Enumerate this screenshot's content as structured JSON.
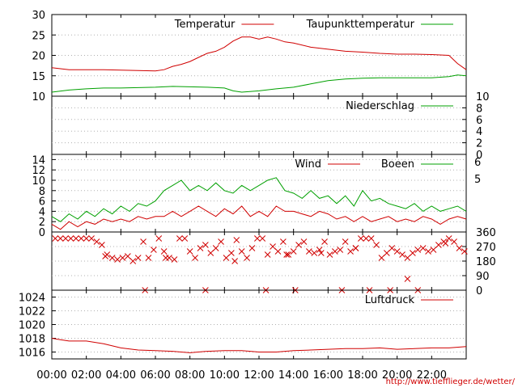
{
  "time_ticks": [
    "00:00",
    "02:00",
    "04:00",
    "06:00",
    "08:00",
    "10:00",
    "12:00",
    "14:00",
    "16:00",
    "18:00",
    "20:00",
    "22:00"
  ],
  "credit": "http://www.tiefflieger.de/wetter/",
  "colors": {
    "series_a": "#d00000",
    "series_b": "#00a000",
    "grid": "#b0b0b0",
    "axis": "#000000"
  },
  "chart_data": [
    {
      "type": "line",
      "ylim": [
        10,
        30
      ],
      "yticks": [
        "10",
        "15",
        "20",
        "25",
        "30"
      ],
      "legend_placement": "top-right",
      "series": [
        {
          "name": "Temperatur",
          "color": "#d00000",
          "x": [
            0,
            1,
            2,
            3,
            4,
            5,
            6,
            6.5,
            7,
            7.5,
            8,
            8.5,
            9,
            9.5,
            10,
            10.5,
            11,
            11.5,
            12,
            12.5,
            13,
            13.5,
            14,
            15,
            16,
            17,
            18,
            19,
            20,
            21,
            22,
            23,
            23.5,
            24
          ],
          "values": [
            17.0,
            16.5,
            16.5,
            16.5,
            16.4,
            16.3,
            16.2,
            16.5,
            17.3,
            17.8,
            18.5,
            19.5,
            20.5,
            21.0,
            22.0,
            23.5,
            24.5,
            24.5,
            24.0,
            24.5,
            24.0,
            23.3,
            23.0,
            22.0,
            21.5,
            21.0,
            20.8,
            20.5,
            20.3,
            20.3,
            20.2,
            20.0,
            18.0,
            16.5
          ]
        },
        {
          "name": "Taupunkttemperatur",
          "color": "#00a000",
          "x": [
            0,
            1,
            2,
            3,
            4,
            5,
            6,
            7,
            8,
            9,
            10,
            10.5,
            11,
            12,
            13,
            14,
            15,
            16,
            17,
            18,
            19,
            20,
            21,
            22,
            23,
            23.5,
            24
          ],
          "values": [
            11.0,
            11.5,
            11.8,
            12.0,
            12.0,
            12.1,
            12.2,
            12.4,
            12.3,
            12.2,
            12.0,
            11.3,
            11.0,
            11.3,
            11.8,
            12.2,
            13.0,
            13.8,
            14.2,
            14.4,
            14.5,
            14.5,
            14.5,
            14.5,
            14.8,
            15.2,
            15.0
          ]
        }
      ]
    },
    {
      "type": "line",
      "ylim": [
        0,
        10
      ],
      "yticks": [
        "0",
        "2",
        "4",
        "6",
        "8",
        "10"
      ],
      "legend_placement": "top-right",
      "series": [
        {
          "name": "Niederschlag",
          "color": "#00a000",
          "x": [
            0,
            24
          ],
          "values": [
            0,
            0
          ]
        }
      ]
    },
    {
      "type": "line",
      "ylim": [
        0,
        15
      ],
      "yticks": [
        "0",
        "2",
        "4",
        "6",
        "8",
        "10",
        "12",
        "14"
      ],
      "right_labels": [
        {
          "label": "6",
          "value": 13.6
        },
        {
          "label": "5",
          "value": 10.3
        }
      ],
      "legend_placement": "top-right",
      "series": [
        {
          "name": "Wind",
          "color": "#d00000",
          "x": [
            0,
            0.5,
            1,
            1.5,
            2,
            2.5,
            3,
            3.5,
            4,
            4.5,
            5,
            5.5,
            6,
            6.5,
            7,
            7.5,
            8,
            8.5,
            9,
            9.5,
            10,
            10.5,
            11,
            11.5,
            12,
            12.5,
            13,
            13.5,
            14,
            14.5,
            15,
            15.5,
            16,
            16.5,
            17,
            17.5,
            18,
            18.5,
            19,
            19.5,
            20,
            20.5,
            21,
            21.5,
            22,
            22.5,
            23,
            23.5,
            24
          ],
          "values": [
            1.5,
            0.5,
            2,
            1,
            2,
            1.5,
            2.5,
            2,
            2.5,
            2,
            3,
            2.5,
            3,
            3,
            4,
            3,
            4,
            5,
            4,
            3,
            4.5,
            3.5,
            5,
            3,
            4,
            3,
            5,
            4,
            4,
            3.5,
            3,
            4,
            3.5,
            2.5,
            3,
            2,
            3,
            2,
            2.5,
            3,
            2,
            2.5,
            2,
            3,
            2.5,
            1.5,
            2.5,
            3,
            2.5
          ]
        },
        {
          "name": "Boeen",
          "color": "#00a000",
          "x": [
            0,
            0.5,
            1,
            1.5,
            2,
            2.5,
            3,
            3.5,
            4,
            4.5,
            5,
            5.5,
            6,
            6.5,
            7,
            7.5,
            8,
            8.5,
            9,
            9.5,
            10,
            10.5,
            11,
            11.5,
            12,
            12.5,
            13,
            13.5,
            14,
            14.5,
            15,
            15.5,
            16,
            16.5,
            17,
            17.5,
            18,
            18.5,
            19,
            19.5,
            20,
            20.5,
            21,
            21.5,
            22,
            22.5,
            23,
            23.5,
            24
          ],
          "values": [
            3,
            2,
            3.5,
            2.5,
            4,
            3,
            4.5,
            3.5,
            5,
            4,
            5.5,
            5,
            6,
            8,
            9,
            10,
            8,
            9,
            8,
            9.5,
            8,
            7.5,
            9,
            8,
            9,
            10,
            10.5,
            8,
            7.5,
            6.5,
            8,
            6.5,
            7,
            5.5,
            7,
            5,
            8,
            6,
            6.5,
            5.5,
            5,
            4.5,
            5.5,
            4,
            5,
            4,
            4.5,
            5,
            4
          ]
        }
      ]
    },
    {
      "type": "scatter",
      "ylim": [
        0,
        360
      ],
      "yticks": [
        "0",
        "90",
        "180",
        "270",
        "360"
      ],
      "series": [
        {
          "name": "",
          "color": "#d00000",
          "x": [
            0.2,
            0.5,
            0.8,
            1.1,
            1.4,
            1.7,
            2.0,
            2.3,
            2.6,
            2.9,
            3.2,
            3.5,
            3.8,
            4.1,
            4.4,
            4.7,
            5.0,
            5.3,
            5.6,
            5.9,
            6.2,
            6.5,
            6.8,
            7.1,
            7.4,
            7.7,
            8.0,
            8.3,
            8.6,
            8.9,
            9.2,
            9.5,
            9.8,
            10.1,
            10.4,
            10.7,
            11.0,
            11.3,
            11.6,
            11.9,
            12.2,
            12.5,
            12.8,
            13.1,
            13.4,
            13.7,
            14.0,
            14.3,
            14.6,
            14.9,
            15.2,
            15.5,
            15.8,
            16.1,
            16.4,
            16.7,
            17.0,
            17.3,
            17.6,
            17.9,
            18.2,
            18.5,
            18.8,
            19.1,
            19.4,
            19.7,
            20.0,
            20.3,
            20.6,
            20.9,
            21.2,
            21.5,
            21.8,
            22.1,
            22.4,
            22.7,
            23.0,
            23.3,
            23.6,
            23.9,
            5.4,
            8.9,
            12.4,
            14.1,
            16.8,
            18.4,
            19.6,
            21.2,
            3.1,
            6.6,
            10.6,
            13.6,
            15.6,
            17.6,
            20.6,
            22.8
          ],
          "values": [
            320,
            320,
            320,
            320,
            320,
            320,
            320,
            320,
            300,
            280,
            220,
            200,
            190,
            200,
            210,
            180,
            200,
            300,
            200,
            250,
            320,
            240,
            200,
            190,
            320,
            320,
            240,
            200,
            260,
            280,
            230,
            260,
            300,
            200,
            230,
            310,
            240,
            200,
            260,
            320,
            320,
            220,
            270,
            240,
            300,
            220,
            240,
            280,
            300,
            240,
            230,
            250,
            300,
            220,
            240,
            250,
            300,
            240,
            260,
            320,
            320,
            320,
            280,
            200,
            230,
            260,
            240,
            220,
            200,
            230,
            250,
            260,
            240,
            250,
            280,
            300,
            320,
            300,
            260,
            240,
            0,
            0,
            0,
            0,
            0,
            0,
            0,
            0,
            210,
            200,
            180,
            220,
            230,
            260,
            70,
            290
          ]
        }
      ]
    },
    {
      "type": "line",
      "ylim": [
        1015,
        1025
      ],
      "yticks": [
        "1016",
        "1018",
        "1020",
        "1022",
        "1024"
      ],
      "legend_placement": "top-right",
      "series": [
        {
          "name": "Luftdruck",
          "color": "#d00000",
          "x": [
            0,
            0.5,
            1,
            2,
            3,
            4,
            5,
            6,
            7,
            8,
            9,
            10,
            11,
            12,
            13,
            14,
            15,
            16,
            17,
            18,
            19,
            20,
            21,
            22,
            23,
            24
          ],
          "values": [
            1018.0,
            1017.8,
            1017.6,
            1017.6,
            1017.2,
            1016.6,
            1016.3,
            1016.2,
            1016.1,
            1015.9,
            1016.1,
            1016.2,
            1016.2,
            1016.0,
            1016.0,
            1016.2,
            1016.3,
            1016.4,
            1016.5,
            1016.5,
            1016.6,
            1016.4,
            1016.5,
            1016.6,
            1016.6,
            1016.8
          ]
        }
      ]
    }
  ]
}
